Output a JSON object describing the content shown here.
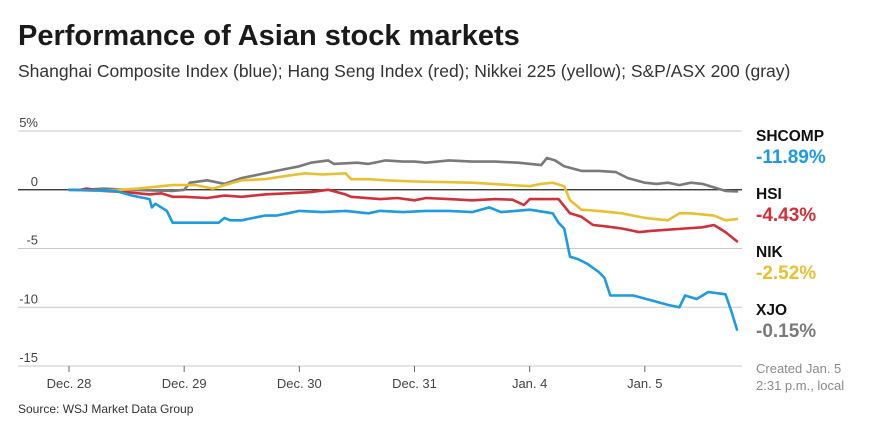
{
  "chart_data": {
    "type": "line",
    "title": "Performance of Asian stock markets",
    "subtitle": "Shanghai Composite Index (blue); Hang Seng Index (red); Nikkei 225 (yellow); S&P/ASX 200 (gray)",
    "x_ticks": [
      "Dec. 28",
      "Dec. 29",
      "Dec. 30",
      "Dec. 31",
      "Jan. 4",
      "Jan. 5"
    ],
    "y_ticks": [
      5,
      0,
      -5,
      -10,
      -15
    ],
    "y_tick_labels": [
      "5%",
      "0",
      "-5",
      "-10",
      "-15"
    ],
    "ylim": [
      -15,
      5
    ],
    "xlim": [
      0,
      6
    ],
    "series": [
      {
        "name": "S&P/ASX 200",
        "key": "asx",
        "color": "#7a7a7a",
        "points": [
          [
            0,
            0
          ],
          [
            0.15,
            0
          ],
          [
            0.3,
            0.1
          ],
          [
            0.5,
            0
          ],
          [
            0.9,
            -0.1
          ],
          [
            1.0,
            0.0
          ],
          [
            1.05,
            0.6
          ],
          [
            1.2,
            0.8
          ],
          [
            1.35,
            0.5
          ],
          [
            1.5,
            1.0
          ],
          [
            1.6,
            1.2
          ],
          [
            1.8,
            1.6
          ],
          [
            2.0,
            2.0
          ],
          [
            2.1,
            2.3
          ],
          [
            2.25,
            2.5
          ],
          [
            2.3,
            2.2
          ],
          [
            2.5,
            2.3
          ],
          [
            2.6,
            2.2
          ],
          [
            2.75,
            2.5
          ],
          [
            2.9,
            2.4
          ],
          [
            3.0,
            2.4
          ],
          [
            3.1,
            2.3
          ],
          [
            3.3,
            2.5
          ],
          [
            3.5,
            2.4
          ],
          [
            3.7,
            2.4
          ],
          [
            3.9,
            2.3
          ],
          [
            4.1,
            2.1
          ],
          [
            4.15,
            2.7
          ],
          [
            4.22,
            2.5
          ],
          [
            4.3,
            2.0
          ],
          [
            4.45,
            1.6
          ],
          [
            4.6,
            1.6
          ],
          [
            4.75,
            1.5
          ],
          [
            4.85,
            1.0
          ],
          [
            5.0,
            0.6
          ],
          [
            5.1,
            0.5
          ],
          [
            5.2,
            0.6
          ],
          [
            5.3,
            0.4
          ],
          [
            5.4,
            0.6
          ],
          [
            5.5,
            0.5
          ],
          [
            5.6,
            0.2
          ],
          [
            5.7,
            -0.1
          ],
          [
            5.8,
            -0.15
          ]
        ]
      },
      {
        "name": "Hang Seng Index",
        "key": "hsi",
        "color": "#d0303a",
        "points": [
          [
            0,
            0
          ],
          [
            0.1,
            0
          ],
          [
            0.15,
            0.1
          ],
          [
            0.3,
            -0.1
          ],
          [
            0.5,
            -0.2
          ],
          [
            0.7,
            -0.4
          ],
          [
            0.8,
            -0.3
          ],
          [
            0.9,
            -0.6
          ],
          [
            1.0,
            -0.6
          ],
          [
            1.2,
            -0.7
          ],
          [
            1.35,
            -0.5
          ],
          [
            1.5,
            -0.6
          ],
          [
            1.7,
            -0.4
          ],
          [
            1.9,
            -0.3
          ],
          [
            2.1,
            -0.2
          ],
          [
            2.25,
            0.0
          ],
          [
            2.4,
            -0.4
          ],
          [
            2.45,
            -0.6
          ],
          [
            2.7,
            -0.8
          ],
          [
            2.85,
            -0.7
          ],
          [
            3.0,
            -0.9
          ],
          [
            3.1,
            -0.7
          ],
          [
            3.3,
            -0.8
          ],
          [
            3.5,
            -0.9
          ],
          [
            3.7,
            -0.8
          ],
          [
            3.85,
            -0.85
          ],
          [
            3.95,
            -1.3
          ],
          [
            4.0,
            -0.8
          ],
          [
            4.25,
            -0.8
          ],
          [
            4.35,
            -2.0
          ],
          [
            4.45,
            -2.3
          ],
          [
            4.55,
            -3.0
          ],
          [
            4.65,
            -3.1
          ],
          [
            4.8,
            -3.3
          ],
          [
            4.95,
            -3.6
          ],
          [
            5.05,
            -3.5
          ],
          [
            5.2,
            -3.4
          ],
          [
            5.35,
            -3.3
          ],
          [
            5.5,
            -3.2
          ],
          [
            5.6,
            -3.0
          ],
          [
            5.7,
            -3.6
          ],
          [
            5.8,
            -4.4
          ]
        ]
      },
      {
        "name": "Nikkei 225",
        "key": "nik",
        "color": "#e8c032",
        "points": [
          [
            0,
            0
          ],
          [
            0.3,
            -0.1
          ],
          [
            0.6,
            0.1
          ],
          [
            0.9,
            0.4
          ],
          [
            1.1,
            0.4
          ],
          [
            1.25,
            0.1
          ],
          [
            1.35,
            0.4
          ],
          [
            1.5,
            0.8
          ],
          [
            1.7,
            0.9
          ],
          [
            1.9,
            1.2
          ],
          [
            2.05,
            1.4
          ],
          [
            2.2,
            1.3
          ],
          [
            2.4,
            1.4
          ],
          [
            2.45,
            0.9
          ],
          [
            2.6,
            0.9
          ],
          [
            2.75,
            0.8
          ],
          [
            3.0,
            0.7
          ],
          [
            3.5,
            0.6
          ],
          [
            4.0,
            0.3
          ],
          [
            4.1,
            0.5
          ],
          [
            4.2,
            0.6
          ],
          [
            4.3,
            0.3
          ],
          [
            4.35,
            -0.9
          ],
          [
            4.45,
            -1.7
          ],
          [
            4.6,
            -1.8
          ],
          [
            4.8,
            -2.0
          ],
          [
            5.0,
            -2.4
          ],
          [
            5.2,
            -2.6
          ],
          [
            5.3,
            -2.0
          ],
          [
            5.4,
            -2.0
          ],
          [
            5.5,
            -2.1
          ],
          [
            5.6,
            -2.2
          ],
          [
            5.7,
            -2.6
          ],
          [
            5.8,
            -2.5
          ]
        ]
      },
      {
        "name": "Shanghai Composite Index",
        "key": "shcomp",
        "color": "#1e9ae0",
        "points": [
          [
            0,
            0
          ],
          [
            0.4,
            -0.1
          ],
          [
            0.55,
            -0.5
          ],
          [
            0.7,
            -0.8
          ],
          [
            0.72,
            -1.5
          ],
          [
            0.75,
            -1.2
          ],
          [
            0.85,
            -1.8
          ],
          [
            0.9,
            -2.8
          ],
          [
            1.05,
            -2.8
          ],
          [
            1.2,
            -2.8
          ],
          [
            1.3,
            -2.8
          ],
          [
            1.35,
            -2.4
          ],
          [
            1.4,
            -2.6
          ],
          [
            1.5,
            -2.6
          ],
          [
            1.6,
            -2.4
          ],
          [
            1.7,
            -2.2
          ],
          [
            1.8,
            -2.2
          ],
          [
            1.9,
            -2.0
          ],
          [
            2.0,
            -1.8
          ],
          [
            2.2,
            -1.9
          ],
          [
            2.4,
            -1.8
          ],
          [
            2.6,
            -2.0
          ],
          [
            2.7,
            -1.8
          ],
          [
            2.9,
            -1.9
          ],
          [
            3.1,
            -1.8
          ],
          [
            3.3,
            -1.8
          ],
          [
            3.5,
            -1.9
          ],
          [
            3.65,
            -1.5
          ],
          [
            3.75,
            -1.9
          ],
          [
            4.0,
            -1.7
          ],
          [
            4.2,
            -2.0
          ],
          [
            4.25,
            -2.8
          ],
          [
            4.3,
            -3.3
          ],
          [
            4.35,
            -5.7
          ],
          [
            4.42,
            -5.9
          ],
          [
            4.5,
            -6.3
          ],
          [
            4.6,
            -7.0
          ],
          [
            4.65,
            -7.5
          ],
          [
            4.7,
            -9.0
          ],
          [
            4.9,
            -9.0
          ],
          [
            5.2,
            -9.8
          ],
          [
            5.3,
            -10.0
          ],
          [
            5.35,
            -9.0
          ],
          [
            5.45,
            -9.3
          ],
          [
            5.55,
            -8.7
          ],
          [
            5.7,
            -8.9
          ],
          [
            5.75,
            -10.3
          ],
          [
            5.8,
            -11.9
          ]
        ]
      }
    ],
    "end_labels": [
      {
        "ticker": "SHCOMP",
        "value": "-11.89%",
        "color": "#1e9ae0"
      },
      {
        "ticker": "HSI",
        "value": "-4.43%",
        "color": "#d0303a"
      },
      {
        "ticker": "NIK",
        "value": "-2.52%",
        "color": "#e8c032"
      },
      {
        "ticker": "XJO",
        "value": "-0.15%",
        "color": "#7a7a7a"
      }
    ]
  },
  "created_line1": "Created Jan. 5",
  "created_line2": "2:31 p.m., local",
  "source": "Source: WSJ Market Data Group"
}
